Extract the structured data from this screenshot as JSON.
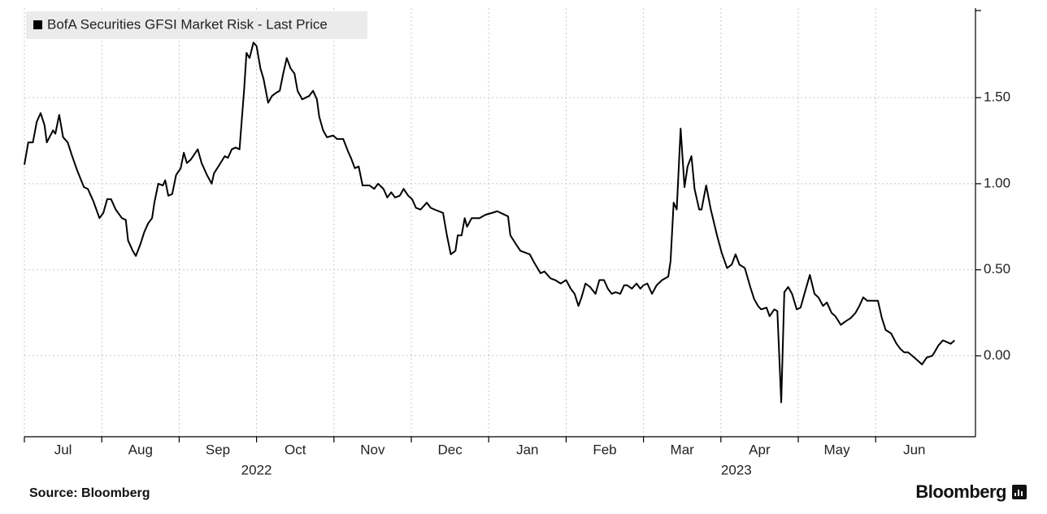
{
  "chart_data": {
    "type": "line",
    "series": [
      {
        "name": "BofA Securities GFSI Market Risk - Last Price",
        "color": "#000000",
        "values": [
          1.11,
          1.24,
          1.24,
          1.36,
          1.41,
          1.34,
          1.24,
          1.31,
          1.29,
          1.4,
          1.27,
          1.24,
          1.17,
          1.08,
          0.98,
          0.97,
          0.9,
          0.8,
          0.83,
          0.91,
          0.91,
          0.85,
          0.8,
          0.79,
          0.67,
          0.61,
          0.58,
          0.65,
          0.72,
          0.77,
          0.8,
          0.89,
          1.0,
          0.99,
          1.02,
          0.93,
          0.94,
          1.05,
          1.09,
          1.18,
          1.12,
          1.14,
          1.2,
          1.12,
          1.05,
          1.0,
          1.06,
          1.11,
          1.16,
          1.15,
          1.2,
          1.21,
          1.2,
          1.55,
          1.76,
          1.73,
          1.82,
          1.8,
          1.67,
          1.61,
          1.47,
          1.51,
          1.53,
          1.54,
          1.63,
          1.73,
          1.67,
          1.64,
          1.54,
          1.49,
          1.51,
          1.54,
          1.49,
          1.39,
          1.31,
          1.27,
          1.28,
          1.26,
          1.26,
          1.19,
          1.15,
          1.09,
          1.1,
          0.99,
          0.99,
          0.97,
          1.0,
          0.97,
          0.92,
          0.95,
          0.92,
          0.93,
          0.97,
          0.93,
          0.91,
          0.86,
          0.85,
          0.89,
          0.86,
          0.85,
          0.83,
          0.7,
          0.59,
          0.61,
          0.7,
          0.7,
          0.8,
          0.75,
          0.8,
          0.8,
          0.82,
          0.83,
          0.84,
          0.81,
          0.7,
          0.65,
          0.61,
          0.6,
          0.59,
          0.54,
          0.48,
          0.49,
          0.45,
          0.44,
          0.42,
          0.44,
          0.39,
          0.36,
          0.29,
          0.34,
          0.42,
          0.4,
          0.36,
          0.44,
          0.44,
          0.39,
          0.36,
          0.37,
          0.36,
          0.41,
          0.41,
          0.39,
          0.42,
          0.39,
          0.41,
          0.42,
          0.36,
          0.41,
          0.44,
          0.46,
          0.55,
          0.89,
          0.85,
          1.32,
          0.98,
          1.1,
          1.16,
          0.97,
          0.85,
          0.85,
          0.99,
          0.85,
          0.7,
          0.6,
          0.51,
          0.53,
          0.59,
          0.53,
          0.51,
          0.4,
          0.33,
          0.29,
          0.27,
          0.28,
          0.23,
          0.27,
          0.26,
          -0.27,
          0.37,
          0.4,
          0.36,
          0.27,
          0.28,
          0.36,
          0.47,
          0.36,
          0.34,
          0.29,
          0.31,
          0.25,
          0.23,
          0.18,
          0.2,
          0.22,
          0.25,
          0.29,
          0.34,
          0.32,
          0.32,
          0.32,
          0.22,
          0.15,
          0.13,
          0.07,
          0.04,
          0.02,
          0.02,
          -0.01,
          -0.03,
          -0.05,
          -0.01,
          0.0,
          0.02,
          0.06,
          0.09,
          0.08,
          0.07,
          0.09
        ]
      }
    ],
    "x": [
      0,
      0.05,
      0.11,
      0.16,
      0.21,
      0.26,
      0.29,
      0.37,
      0.4,
      0.45,
      0.5,
      0.56,
      0.61,
      0.68,
      0.77,
      0.82,
      0.89,
      0.97,
      1.02,
      1.07,
      1.12,
      1.18,
      1.26,
      1.31,
      1.34,
      1.4,
      1.44,
      1.5,
      1.55,
      1.6,
      1.65,
      1.68,
      1.73,
      1.79,
      1.82,
      1.86,
      1.91,
      1.96,
      2.02,
      2.06,
      2.1,
      2.15,
      2.24,
      2.29,
      2.36,
      2.42,
      2.45,
      2.52,
      2.59,
      2.63,
      2.68,
      2.73,
      2.78,
      2.84,
      2.87,
      2.91,
      2.96,
      3.0,
      3.05,
      3.09,
      3.15,
      3.2,
      3.26,
      3.3,
      3.34,
      3.39,
      3.44,
      3.49,
      3.53,
      3.59,
      3.68,
      3.73,
      3.78,
      3.81,
      3.86,
      3.91,
      3.99,
      4.04,
      4.12,
      4.18,
      4.22,
      4.27,
      4.32,
      4.37,
      4.46,
      4.52,
      4.57,
      4.64,
      4.69,
      4.74,
      4.79,
      4.85,
      4.9,
      4.96,
      5.01,
      5.06,
      5.12,
      5.2,
      5.25,
      5.3,
      5.41,
      5.46,
      5.51,
      5.57,
      5.6,
      5.65,
      5.69,
      5.72,
      5.78,
      5.88,
      5.96,
      6.04,
      6.11,
      6.25,
      6.28,
      6.35,
      6.41,
      6.47,
      6.53,
      6.59,
      6.67,
      6.72,
      6.8,
      6.86,
      6.93,
      7.0,
      7.06,
      7.11,
      7.16,
      7.2,
      7.25,
      7.31,
      7.38,
      7.43,
      7.49,
      7.54,
      7.59,
      7.64,
      7.7,
      7.75,
      7.79,
      7.85,
      7.91,
      7.96,
      8.0,
      8.05,
      8.11,
      8.17,
      8.24,
      8.32,
      8.35,
      8.39,
      8.43,
      8.48,
      8.53,
      8.57,
      8.62,
      8.66,
      8.72,
      8.75,
      8.81,
      8.87,
      8.95,
      9.01,
      9.08,
      9.14,
      9.19,
      9.24,
      9.31,
      9.38,
      9.43,
      9.48,
      9.52,
      9.59,
      9.63,
      9.69,
      9.73,
      9.78,
      9.82,
      9.87,
      9.92,
      9.98,
      10.03,
      10.08,
      10.15,
      10.21,
      10.26,
      10.32,
      10.37,
      10.43,
      10.48,
      10.55,
      10.61,
      10.68,
      10.74,
      10.79,
      10.84,
      10.89,
      10.95,
      11.03,
      11.08,
      11.13,
      11.2,
      11.27,
      11.32,
      11.37,
      11.42,
      11.5,
      11.55,
      11.6,
      11.66,
      11.73,
      11.76,
      11.81,
      11.87,
      11.92,
      11.97,
      12.02
    ],
    "xlim": [
      0,
      12.29
    ],
    "xticks": [
      {
        "value": 0,
        "label": "Jul"
      },
      {
        "value": 1,
        "label": "Aug"
      },
      {
        "value": 2,
        "label": "Sep"
      },
      {
        "value": 3,
        "label": "Oct"
      },
      {
        "value": 4,
        "label": "Nov"
      },
      {
        "value": 5,
        "label": "Dec"
      },
      {
        "value": 6,
        "label": "Jan"
      },
      {
        "value": 7,
        "label": "Feb"
      },
      {
        "value": 8,
        "label": "Mar"
      },
      {
        "value": 9,
        "label": "Apr"
      },
      {
        "value": 10,
        "label": "May"
      },
      {
        "value": 11,
        "label": "Jun"
      }
    ],
    "year_labels": [
      {
        "value": 3,
        "label": "2022"
      },
      {
        "value": 9.2,
        "label": "2023"
      }
    ],
    "ylim": [
      -0.47,
      2.02
    ],
    "yticks": [
      {
        "value": 0,
        "label": "0.00"
      },
      {
        "value": 0.5,
        "label": "0.50"
      },
      {
        "value": 1,
        "label": "1.00"
      },
      {
        "value": 1.5,
        "label": "1.50"
      }
    ],
    "grid": true,
    "legend": "top-left",
    "source": "Source: Bloomberg",
    "logo": "Bloomberg"
  }
}
